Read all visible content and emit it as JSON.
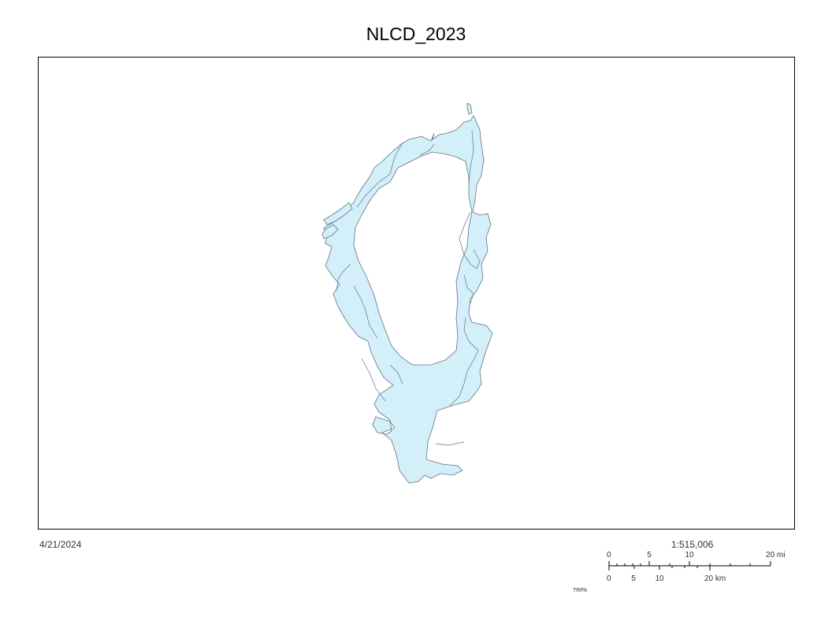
{
  "title": "NLCD_2023",
  "date": "4/21/2024",
  "scale": {
    "ratio": "1:515,006",
    "mi_ticks": [
      "0",
      "5",
      "10",
      "20 mi"
    ],
    "km_ticks": [
      "0",
      "5",
      "10",
      "20 km"
    ]
  },
  "credit": "TRPA",
  "colors": {
    "land_fill": "#d3effa",
    "outline": "#5f7480"
  }
}
